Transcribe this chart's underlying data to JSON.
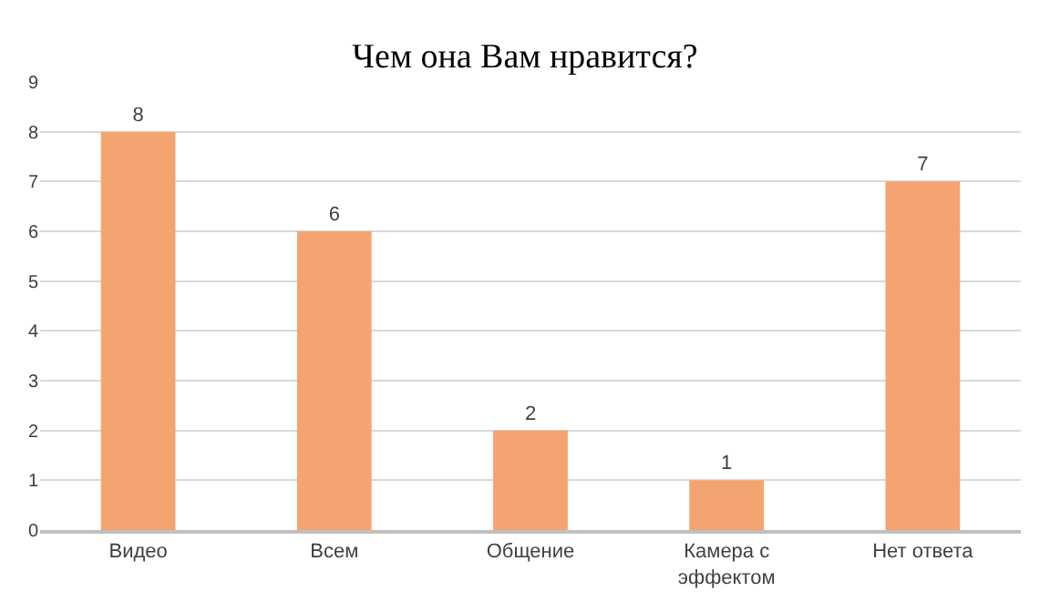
{
  "chart_data": {
    "type": "bar",
    "title": "Чем она Вам нравится?",
    "categories": [
      "Видео",
      "Всем",
      "Общение",
      "Камера с\nэффектом",
      "Нет ответа"
    ],
    "values": [
      8,
      6,
      2,
      1,
      7
    ],
    "color": "#f4a470",
    "ylim": [
      0,
      9
    ],
    "yticks": [
      0,
      1,
      2,
      3,
      4,
      5,
      6,
      7,
      8,
      9
    ],
    "grid": "y",
    "data_labels": true
  }
}
